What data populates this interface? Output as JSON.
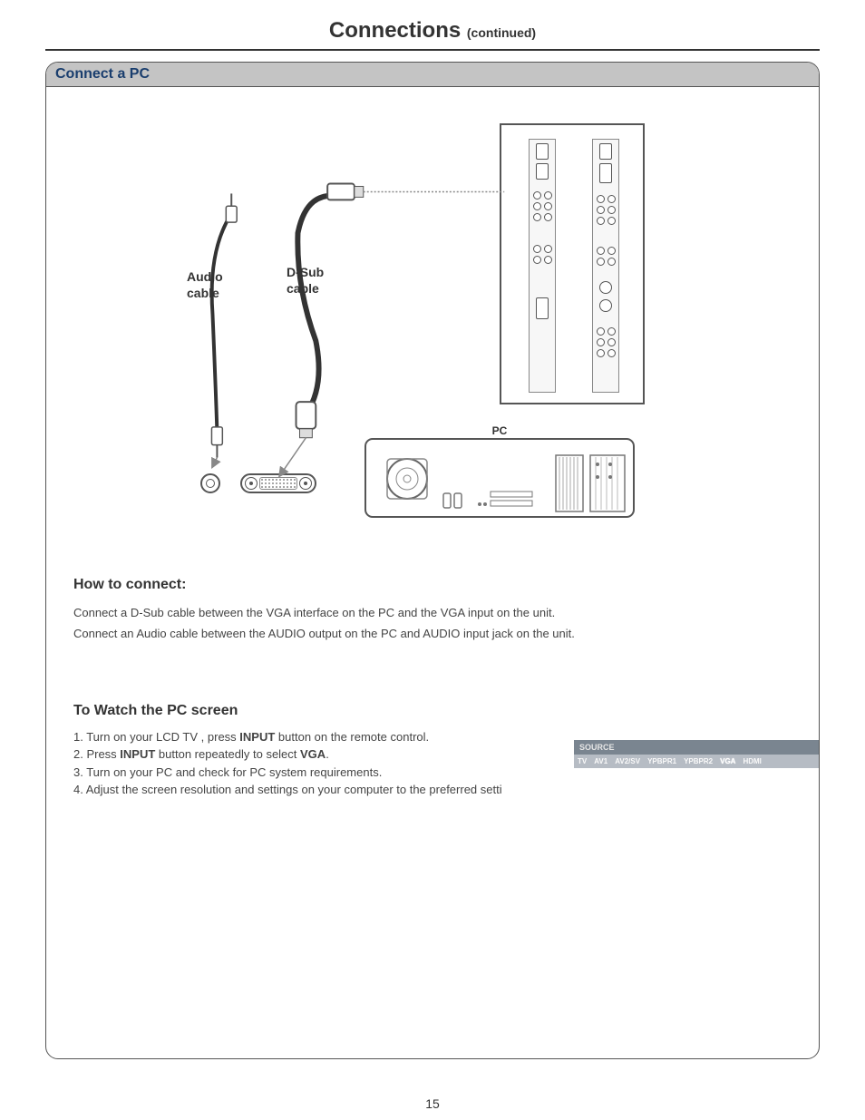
{
  "title_main": "Connections",
  "title_sub": "(continued)",
  "panel_title": "Connect a PC",
  "labels": {
    "audio_cable": "Audio\ncable",
    "dsub_cable": "D-Sub\ncable",
    "pc": "PC"
  },
  "how_to_connect": {
    "heading": "How to connect:",
    "line1": "Connect a D-Sub cable between the VGA interface on the PC and the VGA input on the unit.",
    "line2": "Connect an Audio cable between  the AUDIO output on the PC and AUDIO input jack on the unit."
  },
  "watch_pc": {
    "heading": "To Watch the PC screen",
    "step1_a": "1. Turn on your LCD TV , press ",
    "step1_b": "INPUT",
    "step1_c": " button on the remote control.",
    "step2_a": "2. Press ",
    "step2_b": "INPUT",
    "step2_c": " button repeatedly to select ",
    "step2_d": "VGA",
    "step2_e": ".",
    "step3": "3. Turn on your PC and check for PC system requirements.",
    "step4": "4. Adjust the screen resolution and settings on your computer to the preferred setti"
  },
  "source_osd": {
    "title": "SOURCE",
    "items": [
      "TV",
      "AV1",
      "AV2/SV",
      "YPBPR1",
      "YPBPR2",
      "VGA",
      "HDMI"
    ],
    "selected": "VGA"
  },
  "page_number": "15",
  "colors": {
    "header_bg": "#c4c4c4",
    "header_text": "#1a3e6e",
    "osd_title_bg": "#7a8590",
    "osd_row_bg": "#b6bcc4"
  }
}
